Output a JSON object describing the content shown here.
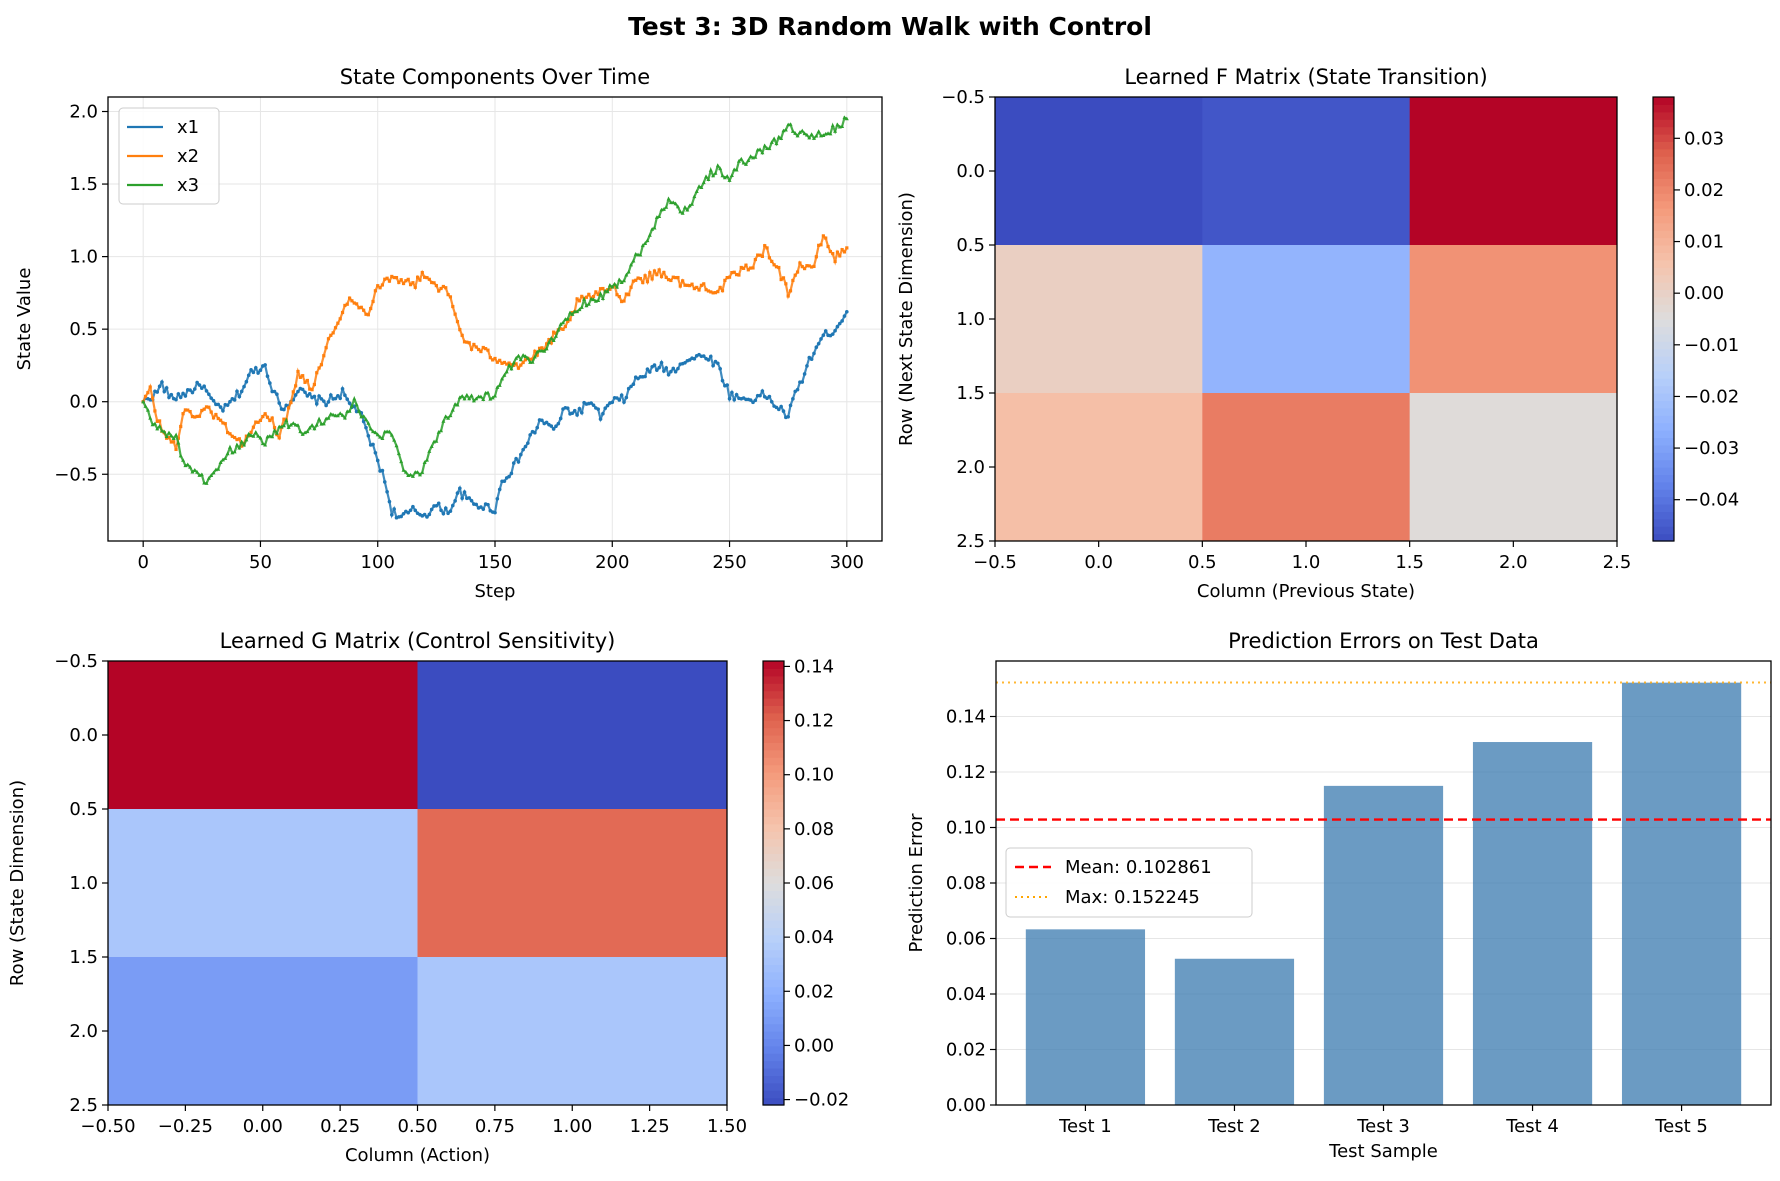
{
  "figure": {
    "suptitle": "Test 3: 3D Random Walk with Control"
  },
  "colors": {
    "x1": "#1f77b4",
    "x2": "#ff7f0e",
    "x3": "#2ca02c",
    "bar": "#4682b4",
    "mean_line": "#ff0000",
    "max_line": "#ffa500",
    "grid": "#e6e6e6"
  },
  "chart_data": [
    {
      "id": "state",
      "type": "line",
      "title": "State Components Over Time",
      "xlabel": "Step",
      "ylabel": "State Value",
      "xlim": [
        -15,
        315
      ],
      "ylim": [
        -0.96,
        2.1
      ],
      "xticks": [
        0,
        50,
        100,
        150,
        200,
        250,
        300
      ],
      "yticks": [
        -0.5,
        0.0,
        0.5,
        1.0,
        1.5,
        2.0
      ],
      "ytick_labels": [
        "−0.5",
        "0.0",
        "0.5",
        "1.0",
        "1.5",
        "2.0"
      ],
      "grid": true,
      "legend_position": "upper-left",
      "n_steps": 301,
      "series": [
        {
          "name": "x1",
          "marker": "circle",
          "keypoints": [
            [
              0,
              0.0
            ],
            [
              5,
              0.05
            ],
            [
              8,
              0.12
            ],
            [
              12,
              0.02
            ],
            [
              18,
              0.06
            ],
            [
              25,
              0.12
            ],
            [
              30,
              -0.02
            ],
            [
              35,
              -0.05
            ],
            [
              42,
              0.08
            ],
            [
              46,
              0.2
            ],
            [
              52,
              0.25
            ],
            [
              56,
              0.05
            ],
            [
              60,
              -0.05
            ],
            [
              66,
              0.08
            ],
            [
              72,
              0.02
            ],
            [
              78,
              0.0
            ],
            [
              85,
              0.06
            ],
            [
              88,
              -0.02
            ],
            [
              92,
              -0.06
            ],
            [
              95,
              -0.2
            ],
            [
              100,
              -0.4
            ],
            [
              103,
              -0.55
            ],
            [
              106,
              -0.75
            ],
            [
              110,
              -0.8
            ],
            [
              115,
              -0.75
            ],
            [
              120,
              -0.78
            ],
            [
              125,
              -0.72
            ],
            [
              130,
              -0.76
            ],
            [
              135,
              -0.62
            ],
            [
              140,
              -0.7
            ],
            [
              145,
              -0.72
            ],
            [
              150,
              -0.74
            ],
            [
              153,
              -0.55
            ],
            [
              158,
              -0.45
            ],
            [
              165,
              -0.25
            ],
            [
              170,
              -0.12
            ],
            [
              175,
              -0.2
            ],
            [
              180,
              -0.05
            ],
            [
              185,
              -0.08
            ],
            [
              190,
              0.0
            ],
            [
              195,
              -0.1
            ],
            [
              200,
              0.0
            ],
            [
              205,
              0.02
            ],
            [
              210,
              0.15
            ],
            [
              215,
              0.2
            ],
            [
              220,
              0.25
            ],
            [
              225,
              0.2
            ],
            [
              230,
              0.28
            ],
            [
              235,
              0.3
            ],
            [
              240,
              0.32
            ],
            [
              245,
              0.25
            ],
            [
              250,
              0.05
            ],
            [
              255,
              0.02
            ],
            [
              260,
              0.02
            ],
            [
              265,
              0.05
            ],
            [
              270,
              -0.03
            ],
            [
              275,
              -0.1
            ],
            [
              278,
              0.05
            ],
            [
              282,
              0.2
            ],
            [
              286,
              0.35
            ],
            [
              290,
              0.45
            ],
            [
              295,
              0.5
            ],
            [
              300,
              0.62
            ]
          ]
        },
        {
          "name": "x2",
          "marker": "square",
          "keypoints": [
            [
              0,
              0.0
            ],
            [
              3,
              0.08
            ],
            [
              6,
              -0.12
            ],
            [
              10,
              -0.25
            ],
            [
              14,
              -0.3
            ],
            [
              18,
              -0.05
            ],
            [
              22,
              -0.1
            ],
            [
              28,
              -0.05
            ],
            [
              32,
              -0.12
            ],
            [
              38,
              -0.22
            ],
            [
              42,
              -0.3
            ],
            [
              46,
              -0.2
            ],
            [
              50,
              -0.12
            ],
            [
              55,
              -0.1
            ],
            [
              58,
              -0.25
            ],
            [
              62,
              -0.05
            ],
            [
              66,
              0.2
            ],
            [
              72,
              0.1
            ],
            [
              76,
              0.28
            ],
            [
              80,
              0.45
            ],
            [
              84,
              0.6
            ],
            [
              88,
              0.7
            ],
            [
              92,
              0.65
            ],
            [
              96,
              0.62
            ],
            [
              100,
              0.8
            ],
            [
              105,
              0.85
            ],
            [
              110,
              0.85
            ],
            [
              115,
              0.8
            ],
            [
              120,
              0.88
            ],
            [
              125,
              0.8
            ],
            [
              130,
              0.75
            ],
            [
              132,
              0.65
            ],
            [
              136,
              0.45
            ],
            [
              140,
              0.38
            ],
            [
              145,
              0.35
            ],
            [
              150,
              0.3
            ],
            [
              155,
              0.28
            ],
            [
              160,
              0.25
            ],
            [
              165,
              0.3
            ],
            [
              170,
              0.35
            ],
            [
              175,
              0.45
            ],
            [
              180,
              0.5
            ],
            [
              185,
              0.68
            ],
            [
              190,
              0.72
            ],
            [
              195,
              0.75
            ],
            [
              200,
              0.8
            ],
            [
              205,
              0.7
            ],
            [
              210,
              0.85
            ],
            [
              215,
              0.85
            ],
            [
              220,
              0.9
            ],
            [
              225,
              0.85
            ],
            [
              230,
              0.82
            ],
            [
              235,
              0.78
            ],
            [
              240,
              0.8
            ],
            [
              245,
              0.75
            ],
            [
              250,
              0.85
            ],
            [
              255,
              0.9
            ],
            [
              260,
              0.95
            ],
            [
              265,
              1.05
            ],
            [
              270,
              0.95
            ],
            [
              275,
              0.75
            ],
            [
              280,
              0.95
            ],
            [
              285,
              0.9
            ],
            [
              290,
              1.15
            ],
            [
              295,
              0.98
            ],
            [
              298,
              1.05
            ],
            [
              300,
              1.06
            ]
          ]
        },
        {
          "name": "x3",
          "marker": "triangle",
          "keypoints": [
            [
              0,
              0.0
            ],
            [
              4,
              -0.15
            ],
            [
              8,
              -0.2
            ],
            [
              14,
              -0.25
            ],
            [
              18,
              -0.45
            ],
            [
              22,
              -0.5
            ],
            [
              28,
              -0.55
            ],
            [
              32,
              -0.48
            ],
            [
              36,
              -0.35
            ],
            [
              42,
              -0.3
            ],
            [
              48,
              -0.2
            ],
            [
              52,
              -0.28
            ],
            [
              58,
              -0.18
            ],
            [
              62,
              -0.15
            ],
            [
              68,
              -0.2
            ],
            [
              74,
              -0.15
            ],
            [
              80,
              -0.1
            ],
            [
              86,
              -0.1
            ],
            [
              90,
              0.0
            ],
            [
              95,
              -0.15
            ],
            [
              100,
              -0.25
            ],
            [
              105,
              -0.2
            ],
            [
              108,
              -0.3
            ],
            [
              112,
              -0.5
            ],
            [
              118,
              -0.5
            ],
            [
              122,
              -0.35
            ],
            [
              128,
              -0.15
            ],
            [
              132,
              -0.05
            ],
            [
              136,
              0.05
            ],
            [
              142,
              0.02
            ],
            [
              150,
              0.05
            ],
            [
              155,
              0.2
            ],
            [
              160,
              0.3
            ],
            [
              165,
              0.28
            ],
            [
              170,
              0.35
            ],
            [
              175,
              0.45
            ],
            [
              180,
              0.55
            ],
            [
              185,
              0.65
            ],
            [
              190,
              0.7
            ],
            [
              195,
              0.72
            ],
            [
              200,
              0.8
            ],
            [
              205,
              0.85
            ],
            [
              210,
              1.0
            ],
            [
              215,
              1.1
            ],
            [
              220,
              1.3
            ],
            [
              225,
              1.4
            ],
            [
              230,
              1.3
            ],
            [
              235,
              1.4
            ],
            [
              240,
              1.55
            ],
            [
              245,
              1.6
            ],
            [
              250,
              1.55
            ],
            [
              255,
              1.65
            ],
            [
              260,
              1.68
            ],
            [
              265,
              1.75
            ],
            [
              270,
              1.8
            ],
            [
              275,
              1.9
            ],
            [
              280,
              1.85
            ],
            [
              285,
              1.82
            ],
            [
              290,
              1.85
            ],
            [
              295,
              1.88
            ],
            [
              300,
              1.95
            ]
          ]
        }
      ]
    },
    {
      "id": "F",
      "type": "heatmap",
      "title": "Learned F Matrix (State Transition)",
      "xlabel": "Column (Previous State)",
      "ylabel": "Row (Next State Dimension)",
      "xlim": [
        -0.5,
        2.5
      ],
      "ylim": [
        2.5,
        -0.5
      ],
      "xticks": [
        -0.5,
        0.0,
        0.5,
        1.0,
        1.5,
        2.0,
        2.5
      ],
      "xtick_labels": [
        "−0.5",
        "0.0",
        "0.5",
        "1.0",
        "1.5",
        "2.0",
        "2.5"
      ],
      "yticks": [
        -0.5,
        0.0,
        0.5,
        1.0,
        1.5,
        2.0,
        2.5
      ],
      "ytick_labels": [
        "−0.5",
        "0.0",
        "0.5",
        "1.0",
        "1.5",
        "2.0",
        "2.5"
      ],
      "colormap": "coolwarm",
      "vmin": -0.048,
      "vmax": 0.038,
      "colorbar_ticks": [
        -0.04,
        -0.03,
        -0.02,
        -0.01,
        0.0,
        0.01,
        0.02,
        0.03
      ],
      "colorbar_tick_labels": [
        "−0.04",
        "−0.03",
        "−0.02",
        "−0.01",
        "0.00",
        "0.01",
        "0.02",
        "0.03"
      ],
      "values": [
        [
          -0.048,
          -0.046,
          0.038
        ],
        [
          0.001,
          -0.025,
          0.018
        ],
        [
          0.007,
          0.022,
          -0.004
        ]
      ]
    },
    {
      "id": "G",
      "type": "heatmap",
      "title": "Learned G Matrix (Control Sensitivity)",
      "xlabel": "Column (Action)",
      "ylabel": "Row (State Dimension)",
      "xlim": [
        -0.5,
        1.5
      ],
      "ylim": [
        2.5,
        -0.5
      ],
      "xticks": [
        -0.5,
        -0.25,
        0.0,
        0.25,
        0.5,
        0.75,
        1.0,
        1.25,
        1.5
      ],
      "xtick_labels": [
        "−0.50",
        "−0.25",
        "0.00",
        "0.25",
        "0.50",
        "0.75",
        "1.00",
        "1.25",
        "1.50"
      ],
      "yticks": [
        -0.5,
        0.0,
        0.5,
        1.0,
        1.5,
        2.0,
        2.5
      ],
      "ytick_labels": [
        "−0.5",
        "0.0",
        "0.5",
        "1.0",
        "1.5",
        "2.0",
        "2.5"
      ],
      "colormap": "coolwarm",
      "vmin": -0.022,
      "vmax": 0.142,
      "colorbar_ticks": [
        -0.02,
        0.0,
        0.02,
        0.04,
        0.06,
        0.08,
        0.1,
        0.12,
        0.14
      ],
      "colorbar_tick_labels": [
        "−0.02",
        "0.00",
        "0.02",
        "0.04",
        "0.06",
        "0.08",
        "0.10",
        "0.12",
        "0.14"
      ],
      "values": [
        [
          0.142,
          -0.022
        ],
        [
          0.033,
          0.118
        ],
        [
          0.01,
          0.033
        ]
      ]
    },
    {
      "id": "errors",
      "type": "bar",
      "title": "Prediction Errors on Test Data",
      "xlabel": "Test Sample",
      "ylabel": "Prediction Error",
      "categories": [
        "Test 1",
        "Test 2",
        "Test 3",
        "Test 4",
        "Test 5"
      ],
      "values": [
        0.0633,
        0.0527,
        0.115,
        0.1308,
        0.1522
      ],
      "ylim": [
        0,
        0.16
      ],
      "yticks": [
        0.0,
        0.02,
        0.04,
        0.06,
        0.08,
        0.1,
        0.12,
        0.14
      ],
      "ytick_labels": [
        "0.00",
        "0.02",
        "0.04",
        "0.06",
        "0.08",
        "0.10",
        "0.12",
        "0.14"
      ],
      "grid": "y",
      "legend_position": "center-left",
      "hlines": [
        {
          "label": "Mean: 0.102861",
          "value": 0.102861,
          "style": "dashed"
        },
        {
          "label": "Max: 0.152245",
          "value": 0.152245,
          "style": "dotted"
        }
      ]
    }
  ]
}
